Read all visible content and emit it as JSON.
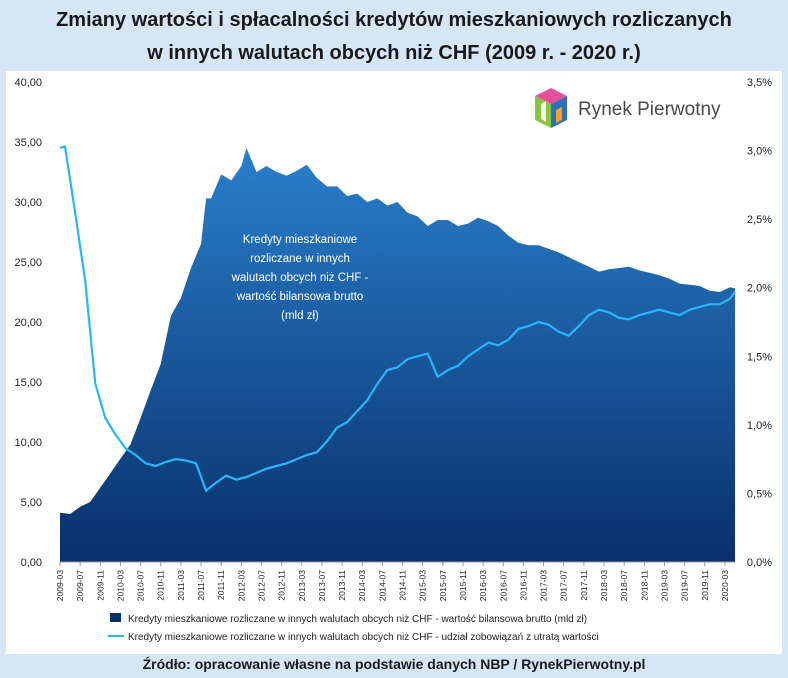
{
  "title_line1": "Zmiany wartości i spłacalności kredytów mieszkaniowych rozliczanych",
  "title_line2": "w innych walutach obcych niż CHF (2009 r. - 2020 r.)",
  "source": "Źródło: opracowanie własne na podstawie danych NBP / RynekPierwotny.pl",
  "logo": {
    "text": "Rynek Pierwotny",
    "icon": "house-cube-icon",
    "colors": [
      "#e84e9c",
      "#8bc540",
      "#2e6fb7",
      "#f3a425"
    ]
  },
  "annotation": [
    "Kredyty mieszkaniowe",
    "rozliczane w innych",
    "walutach obcych niż CHF -",
    "wartość bilansowa brutto",
    "(mld zł)"
  ],
  "chart_data": {
    "type": "area",
    "y_left": {
      "ticks": [
        "0,00",
        "5,00",
        "10,00",
        "15,00",
        "20,00",
        "25,00",
        "30,00",
        "35,00",
        "40,00"
      ],
      "range": [
        0,
        40
      ]
    },
    "y_right": {
      "ticks": [
        "0,0%",
        "0,5%",
        "1,0%",
        "1,5%",
        "2,0%",
        "2,5%",
        "3,0%",
        "3,5%"
      ],
      "range": [
        0,
        3.5
      ]
    },
    "x_ticks": [
      "2009-03",
      "2009-07",
      "2009-11",
      "2010-03",
      "2010-07",
      "2010-11",
      "2011-03",
      "2011-07",
      "2011-11",
      "2012-03",
      "2012-07",
      "2012-11",
      "2013-03",
      "2013-07",
      "2013-11",
      "2014-03",
      "2014-07",
      "2014-11",
      "2015-03",
      "2015-07",
      "2015-11",
      "2016-03",
      "2016-07",
      "2016-11",
      "2017-03",
      "2017-07",
      "2017-11",
      "2018-03",
      "2018-07",
      "2018-11",
      "2019-03",
      "2019-07",
      "2019-11",
      "2020-03"
    ],
    "x_range": [
      "2009-03",
      "2020-05"
    ],
    "series": [
      {
        "name": "Kredyty mieszkaniowe rozliczane w innych walutach obcych niż CHF - wartość bilansowa brutto (mld zł)",
        "axis": "left",
        "style": "area",
        "color_top": "#2a7fcc",
        "color_bottom": "#08306b",
        "x": [
          "2009-03",
          "2009-05",
          "2009-07",
          "2009-09",
          "2009-11",
          "2010-01",
          "2010-03",
          "2010-05",
          "2010-07",
          "2010-09",
          "2010-11",
          "2011-01",
          "2011-03",
          "2011-05",
          "2011-07",
          "2011-08",
          "2011-09",
          "2011-11",
          "2012-01",
          "2012-03",
          "2012-04",
          "2012-06",
          "2012-08",
          "2012-10",
          "2012-12",
          "2013-02",
          "2013-04",
          "2013-06",
          "2013-08",
          "2013-10",
          "2013-12",
          "2014-02",
          "2014-04",
          "2014-06",
          "2014-08",
          "2014-10",
          "2014-12",
          "2015-02",
          "2015-04",
          "2015-06",
          "2015-08",
          "2015-10",
          "2015-12",
          "2016-02",
          "2016-04",
          "2016-06",
          "2016-08",
          "2016-10",
          "2016-12",
          "2017-02",
          "2017-04",
          "2017-06",
          "2017-08",
          "2017-10",
          "2017-12",
          "2018-02",
          "2018-04",
          "2018-06",
          "2018-08",
          "2018-10",
          "2018-12",
          "2019-02",
          "2019-04",
          "2019-06",
          "2019-08",
          "2019-10",
          "2019-12",
          "2020-02",
          "2020-04",
          "2020-05"
        ],
        "values": [
          4.1,
          4.0,
          4.6,
          5.0,
          6.2,
          7.4,
          8.6,
          9.8,
          12.0,
          14.3,
          16.5,
          20.5,
          22.0,
          24.5,
          26.5,
          30.3,
          30.3,
          32.3,
          31.8,
          33.0,
          34.5,
          32.5,
          33.0,
          32.5,
          32.2,
          32.6,
          33.1,
          32.0,
          31.3,
          31.3,
          30.5,
          30.7,
          30.0,
          30.3,
          29.7,
          30.0,
          29.1,
          28.8,
          28.0,
          28.5,
          28.5,
          28.0,
          28.2,
          28.7,
          28.4,
          28.0,
          27.2,
          26.6,
          26.4,
          26.4,
          26.1,
          25.8,
          25.4,
          25.0,
          24.6,
          24.2,
          24.4,
          24.5,
          24.6,
          24.3,
          24.1,
          23.9,
          23.6,
          23.2,
          23.1,
          23.0,
          22.6,
          22.5,
          22.9,
          22.8
        ]
      },
      {
        "name": "Kredyty mieszkaniowe rozliczane w innych walutach obcych niż CHF - udział zobowiązań z utratą wartości",
        "axis": "right",
        "style": "line",
        "color": "#29b6f6",
        "x": [
          "2009-03",
          "2009-04",
          "2009-06",
          "2009-08",
          "2009-10",
          "2009-12",
          "2010-02",
          "2010-04",
          "2010-06",
          "2010-08",
          "2010-10",
          "2010-12",
          "2011-02",
          "2011-04",
          "2011-06",
          "2011-08",
          "2011-10",
          "2011-12",
          "2012-02",
          "2012-04",
          "2012-06",
          "2012-08",
          "2012-10",
          "2012-12",
          "2013-02",
          "2013-04",
          "2013-06",
          "2013-08",
          "2013-10",
          "2013-12",
          "2014-02",
          "2014-04",
          "2014-06",
          "2014-08",
          "2014-10",
          "2014-12",
          "2015-02",
          "2015-04",
          "2015-06",
          "2015-08",
          "2015-10",
          "2015-12",
          "2016-02",
          "2016-04",
          "2016-06",
          "2016-08",
          "2016-10",
          "2016-12",
          "2017-02",
          "2017-04",
          "2017-06",
          "2017-08",
          "2017-10",
          "2017-12",
          "2018-02",
          "2018-04",
          "2018-06",
          "2018-08",
          "2018-10",
          "2018-12",
          "2019-02",
          "2019-04",
          "2019-06",
          "2019-08",
          "2019-10",
          "2019-12",
          "2020-02",
          "2020-04",
          "2020-05"
        ],
        "values": [
          3.02,
          3.03,
          2.55,
          2.05,
          1.3,
          1.05,
          0.93,
          0.83,
          0.78,
          0.72,
          0.7,
          0.73,
          0.75,
          0.74,
          0.72,
          0.52,
          0.58,
          0.63,
          0.6,
          0.62,
          0.65,
          0.68,
          0.7,
          0.72,
          0.75,
          0.78,
          0.8,
          0.88,
          0.98,
          1.02,
          1.1,
          1.18,
          1.3,
          1.4,
          1.42,
          1.48,
          1.5,
          1.52,
          1.35,
          1.4,
          1.43,
          1.5,
          1.55,
          1.6,
          1.58,
          1.62,
          1.7,
          1.72,
          1.75,
          1.73,
          1.68,
          1.65,
          1.72,
          1.8,
          1.84,
          1.82,
          1.78,
          1.77,
          1.8,
          1.82,
          1.84,
          1.82,
          1.8,
          1.84,
          1.86,
          1.88,
          1.88,
          1.92,
          1.97
        ]
      }
    ],
    "grid": false,
    "legend": "bottom"
  }
}
